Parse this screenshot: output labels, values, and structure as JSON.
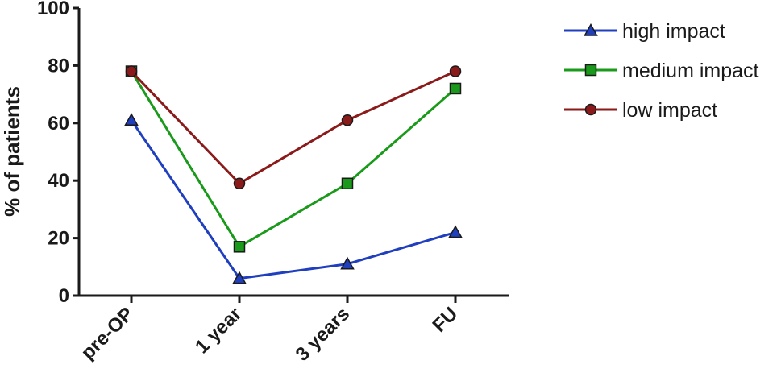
{
  "chart_data": {
    "type": "line",
    "title": "",
    "xlabel": "",
    "ylabel": "% of patients",
    "categories": [
      "pre-OP",
      "1 year",
      "3 years",
      "FU"
    ],
    "ylim": [
      0,
      100
    ],
    "yticks": [
      0,
      20,
      40,
      60,
      80,
      100
    ],
    "grid": false,
    "legend_position": "top-right",
    "series": [
      {
        "name": "high impact",
        "values": [
          61,
          6,
          11,
          22
        ],
        "color": "#1f3fbf",
        "marker": "triangle"
      },
      {
        "name": "medium impact",
        "values": [
          78,
          17,
          39,
          72
        ],
        "color": "#1a9a1a",
        "marker": "square"
      },
      {
        "name": "low impact",
        "values": [
          78,
          39,
          61,
          78
        ],
        "color": "#8b1a1a",
        "marker": "circle"
      }
    ]
  }
}
